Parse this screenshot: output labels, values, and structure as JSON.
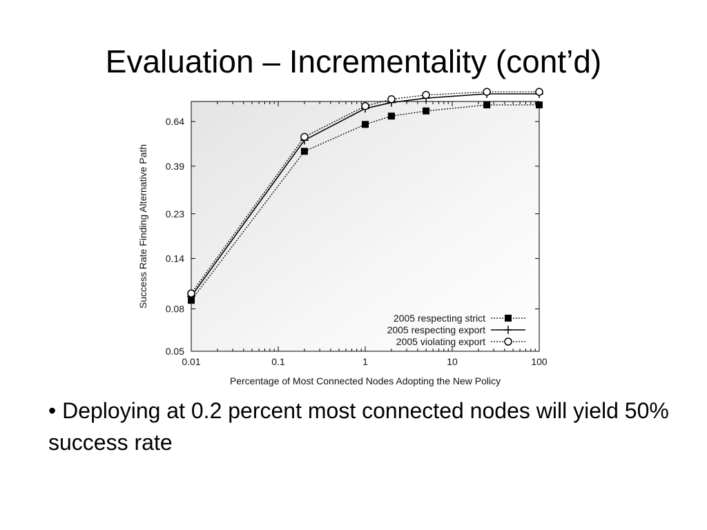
{
  "slide": {
    "title": "Evaluation – Incrementality (cont’d)",
    "bullet_mark": "•",
    "bullet_text": "Deploying at 0.2 percent most connected nodes will yield 50% success rate"
  },
  "chart_data": {
    "type": "line",
    "xscale": "log",
    "yscale": "log",
    "xlabel": "Percentage of Most Connected Nodes Adopting the New Policy",
    "ylabel": "Success Rate Finding Alternative Path",
    "xlim": [
      0.01,
      100
    ],
    "ylim": [
      0.05,
      0.8
    ],
    "xticks": [
      0.01,
      0.1,
      1,
      10,
      100
    ],
    "xtick_labels": [
      "0.01",
      "0.1",
      "1",
      "10",
      "100"
    ],
    "yticks": [
      0.05,
      0.08,
      0.14,
      0.23,
      0.39,
      0.64
    ],
    "ytick_labels": [
      "0.05",
      "0.08",
      "0.14",
      "0.23",
      "0.39",
      "0.64"
    ],
    "legend_position": "bottom-right",
    "grid": false,
    "series": [
      {
        "name": "2005 respecting strict",
        "marker": "filled-square",
        "line_style": "dotted",
        "x": [
          0.01,
          0.2,
          1,
          2,
          5,
          25,
          100
        ],
        "y": [
          0.088,
          0.46,
          0.62,
          0.68,
          0.72,
          0.77,
          0.77
        ]
      },
      {
        "name": "2005 respecting export",
        "marker": "plus",
        "line_style": "solid",
        "x": [
          0.01,
          0.2,
          1,
          2,
          5,
          25,
          100
        ],
        "y": [
          0.092,
          0.52,
          0.74,
          0.79,
          0.83,
          0.87,
          0.87
        ]
      },
      {
        "name": "2005 violating export",
        "marker": "open-circle",
        "line_style": "dotted",
        "x": [
          0.01,
          0.2,
          1,
          2,
          5,
          25,
          100
        ],
        "y": [
          0.095,
          0.54,
          0.76,
          0.82,
          0.86,
          0.89,
          0.89
        ]
      }
    ]
  }
}
